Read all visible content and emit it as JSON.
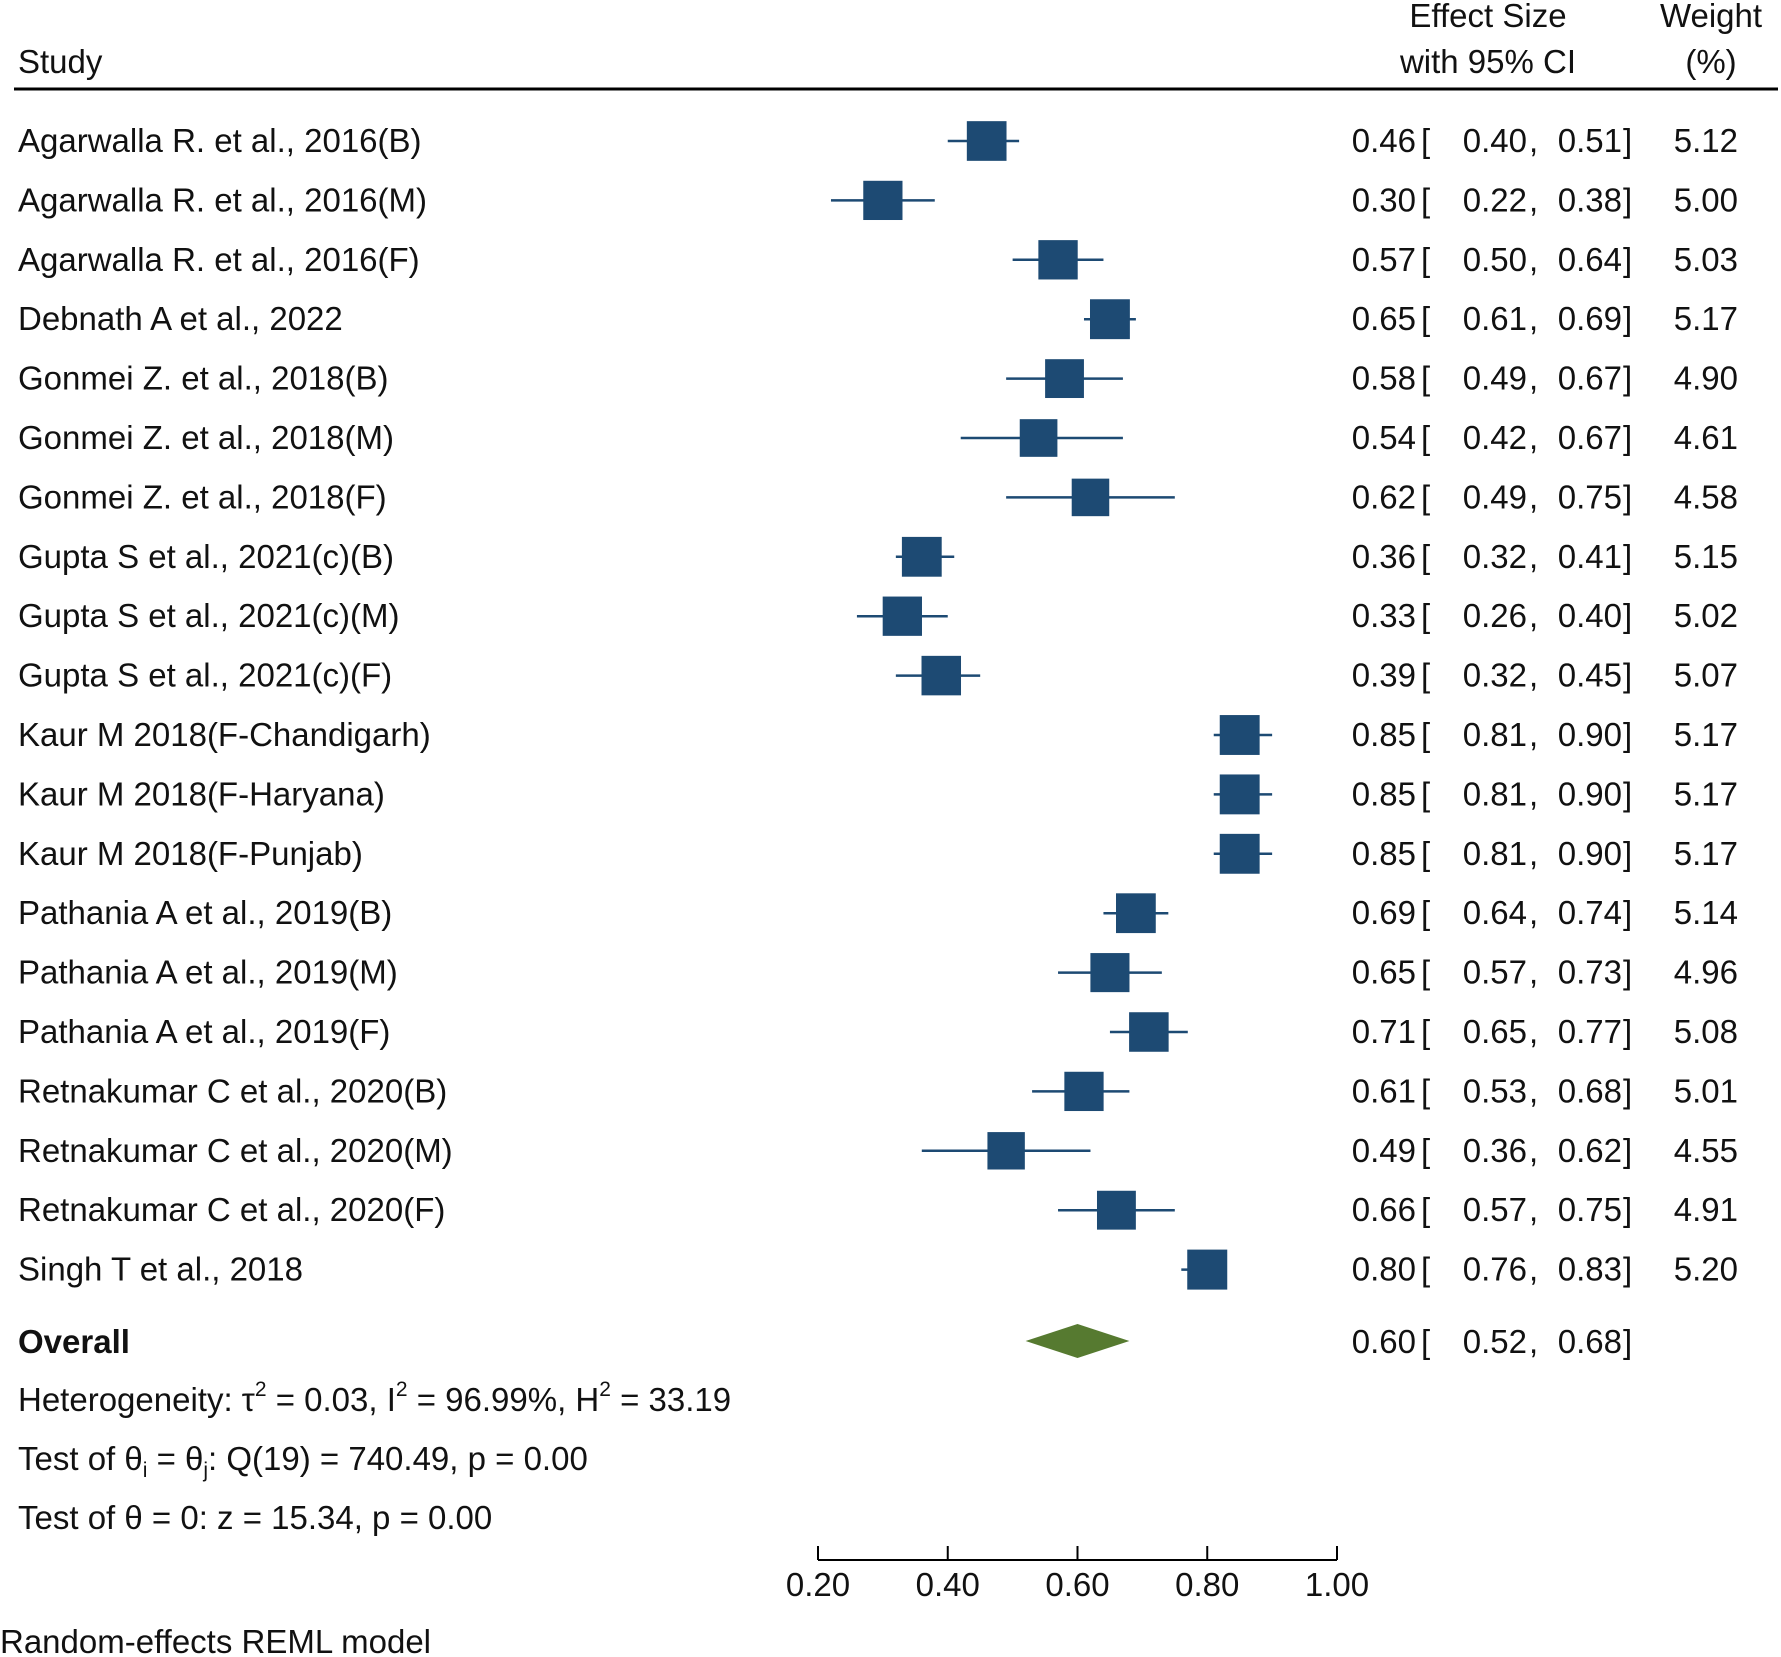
{
  "colors": {
    "marker": "#1d4a73",
    "overall": "#567a30",
    "text": "#111111",
    "rule": "#000000"
  },
  "header": {
    "study": "Study",
    "effect_size_line1": "Effect Size",
    "effect_size_line2": "with 95% CI",
    "weight_line1": "Weight",
    "weight_line2": "(%)"
  },
  "overall": {
    "label": "Overall",
    "es": 0.6,
    "lo": 0.52,
    "hi": 0.68,
    "es_text": "0.60",
    "lo_text": "0.52",
    "hi_text": "0.68"
  },
  "stats": {
    "heterogeneity": {
      "prefix": "Heterogeneity: τ",
      "tau_exp": "2",
      "mid1": " = 0.03, I",
      "i_exp": "2",
      "mid2": " = 96.99%, H",
      "h_exp": "2",
      "suffix": " = 33.19"
    },
    "q_test": {
      "prefix": "Test of θ",
      "sub_i": "i",
      "mid": " = θ",
      "sub_j": "j",
      "suffix": ": Q(19) = 740.49, p = 0.00"
    },
    "z_test": "Test of θ = 0: z = 15.34, p = 0.00"
  },
  "footer_note": "Random-effects REML model",
  "chart_data": {
    "type": "forest",
    "xlim": [
      0.2,
      1.0
    ],
    "x_ticks": [
      0.2,
      0.4,
      0.6,
      0.8,
      1.0
    ],
    "x_tick_labels": [
      "0.20",
      "0.40",
      "0.60",
      "0.80",
      "1.00"
    ],
    "studies": [
      {
        "label": "Agarwalla R. et al., 2016(B)",
        "es": 0.46,
        "lo": 0.4,
        "hi": 0.51,
        "weight": 5.12,
        "es_text": "0.46",
        "lo_text": "0.40",
        "hi_text": "0.51",
        "weight_text": "5.12"
      },
      {
        "label": "Agarwalla R. et al., 2016(M)",
        "es": 0.3,
        "lo": 0.22,
        "hi": 0.38,
        "weight": 5.0,
        "es_text": "0.30",
        "lo_text": "0.22",
        "hi_text": "0.38",
        "weight_text": "5.00"
      },
      {
        "label": "Agarwalla R. et al., 2016(F)",
        "es": 0.57,
        "lo": 0.5,
        "hi": 0.64,
        "weight": 5.03,
        "es_text": "0.57",
        "lo_text": "0.50",
        "hi_text": "0.64",
        "weight_text": "5.03"
      },
      {
        "label": "Debnath A et al., 2022",
        "es": 0.65,
        "lo": 0.61,
        "hi": 0.69,
        "weight": 5.17,
        "es_text": "0.65",
        "lo_text": "0.61",
        "hi_text": "0.69",
        "weight_text": "5.17"
      },
      {
        "label": "Gonmei  Z. et al., 2018(B)",
        "es": 0.58,
        "lo": 0.49,
        "hi": 0.67,
        "weight": 4.9,
        "es_text": "0.58",
        "lo_text": "0.49",
        "hi_text": "0.67",
        "weight_text": "4.90"
      },
      {
        "label": "Gonmei  Z. et al., 2018(M)",
        "es": 0.54,
        "lo": 0.42,
        "hi": 0.67,
        "weight": 4.61,
        "es_text": "0.54",
        "lo_text": "0.42",
        "hi_text": "0.67",
        "weight_text": "4.61"
      },
      {
        "label": "Gonmei  Z. et al., 2018(F)",
        "es": 0.62,
        "lo": 0.49,
        "hi": 0.75,
        "weight": 4.58,
        "es_text": "0.62",
        "lo_text": "0.49",
        "hi_text": "0.75",
        "weight_text": "4.58"
      },
      {
        "label": "Gupta S et al., 2021(c)(B)",
        "es": 0.36,
        "lo": 0.32,
        "hi": 0.41,
        "weight": 5.15,
        "es_text": "0.36",
        "lo_text": "0.32",
        "hi_text": "0.41",
        "weight_text": "5.15"
      },
      {
        "label": "Gupta S et al., 2021(c)(M)",
        "es": 0.33,
        "lo": 0.26,
        "hi": 0.4,
        "weight": 5.02,
        "es_text": "0.33",
        "lo_text": "0.26",
        "hi_text": "0.40",
        "weight_text": "5.02"
      },
      {
        "label": "Gupta S et al., 2021(c)(F)",
        "es": 0.39,
        "lo": 0.32,
        "hi": 0.45,
        "weight": 5.07,
        "es_text": "0.39",
        "lo_text": "0.32",
        "hi_text": "0.45",
        "weight_text": "5.07"
      },
      {
        "label": "Kaur M 2018(F-Chandigarh)",
        "es": 0.85,
        "lo": 0.81,
        "hi": 0.9,
        "weight": 5.17,
        "es_text": "0.85",
        "lo_text": "0.81",
        "hi_text": "0.90",
        "weight_text": "5.17"
      },
      {
        "label": "Kaur M 2018(F-Haryana)",
        "es": 0.85,
        "lo": 0.81,
        "hi": 0.9,
        "weight": 5.17,
        "es_text": "0.85",
        "lo_text": "0.81",
        "hi_text": "0.90",
        "weight_text": "5.17"
      },
      {
        "label": "Kaur M 2018(F-Punjab)",
        "es": 0.85,
        "lo": 0.81,
        "hi": 0.9,
        "weight": 5.17,
        "es_text": "0.85",
        "lo_text": "0.81",
        "hi_text": "0.90",
        "weight_text": "5.17"
      },
      {
        "label": "Pathania A et al., 2019(B)",
        "es": 0.69,
        "lo": 0.64,
        "hi": 0.74,
        "weight": 5.14,
        "es_text": "0.69",
        "lo_text": "0.64",
        "hi_text": "0.74",
        "weight_text": "5.14"
      },
      {
        "label": "Pathania A et al., 2019(M)",
        "es": 0.65,
        "lo": 0.57,
        "hi": 0.73,
        "weight": 4.96,
        "es_text": "0.65",
        "lo_text": "0.57",
        "hi_text": "0.73",
        "weight_text": "4.96"
      },
      {
        "label": "Pathania A et al., 2019(F)",
        "es": 0.71,
        "lo": 0.65,
        "hi": 0.77,
        "weight": 5.08,
        "es_text": "0.71",
        "lo_text": "0.65",
        "hi_text": "0.77",
        "weight_text": "5.08"
      },
      {
        "label": "Retnakumar C et al., 2020(B)",
        "es": 0.61,
        "lo": 0.53,
        "hi": 0.68,
        "weight": 5.01,
        "es_text": "0.61",
        "lo_text": "0.53",
        "hi_text": "0.68",
        "weight_text": "5.01"
      },
      {
        "label": "Retnakumar C et al., 2020(M)",
        "es": 0.49,
        "lo": 0.36,
        "hi": 0.62,
        "weight": 4.55,
        "es_text": "0.49",
        "lo_text": "0.36",
        "hi_text": "0.62",
        "weight_text": "4.55"
      },
      {
        "label": "Retnakumar C et al., 2020(F)",
        "es": 0.66,
        "lo": 0.57,
        "hi": 0.75,
        "weight": 4.91,
        "es_text": "0.66",
        "lo_text": "0.57",
        "hi_text": "0.75",
        "weight_text": "4.91"
      },
      {
        "label": "Singh T et al., 2018",
        "es": 0.8,
        "lo": 0.76,
        "hi": 0.83,
        "weight": 5.2,
        "es_text": "0.80",
        "lo_text": "0.76",
        "hi_text": "0.83",
        "weight_text": "5.20"
      }
    ]
  }
}
